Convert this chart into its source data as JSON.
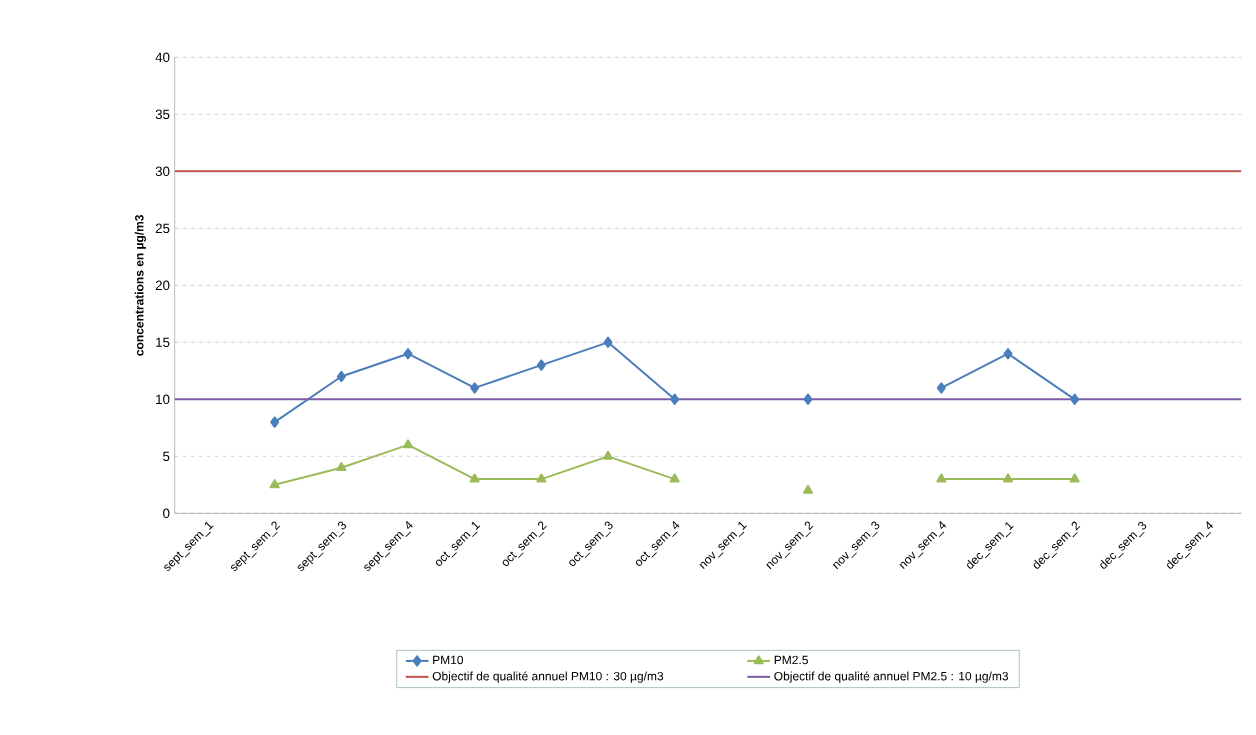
{
  "chart_data": {
    "type": "line",
    "ylabel": "concentrations en µg/m3",
    "categories": [
      "sept_sem_1",
      "sept_sem_2",
      "sept_sem_3",
      "sept_sem_4",
      "oct_sem_1",
      "oct_sem_2",
      "oct_sem_3",
      "oct_sem_4",
      "nov_sem_1",
      "nov_sem_2",
      "nov_sem_3",
      "nov_sem_4",
      "dec_sem_1",
      "dec_sem_2",
      "dec_sem_3",
      "dec_sem_4"
    ],
    "series": [
      {
        "name": "PM10",
        "color": "#4a7ebb",
        "marker": "diamond",
        "values": [
          null,
          8,
          12,
          14,
          11,
          13,
          15,
          10,
          null,
          10,
          null,
          11,
          14,
          10,
          null,
          null
        ]
      },
      {
        "name": "PM2.5",
        "color": "#9bbb59",
        "marker": "triangle",
        "values": [
          null,
          2.5,
          4,
          6,
          3,
          3,
          5,
          3,
          null,
          2,
          null,
          3,
          3,
          3,
          null,
          null
        ]
      }
    ],
    "ref_lines": [
      {
        "axis": "y",
        "value": 30,
        "label": "Objectif de qualité annuel PM10 : 30 µg/m3",
        "color": "#c0504d"
      },
      {
        "axis": "y",
        "value": 10,
        "label": "Objectif de qualité annuel PM2.5 : 10 µg/m3",
        "color": "#7b5ea7"
      }
    ],
    "ylim": [
      0,
      40
    ],
    "yticks": [
      0,
      5,
      10,
      15,
      20,
      25,
      30,
      35,
      40
    ],
    "grid": "y",
    "legend": "bottom",
    "line_style": "solid"
  }
}
